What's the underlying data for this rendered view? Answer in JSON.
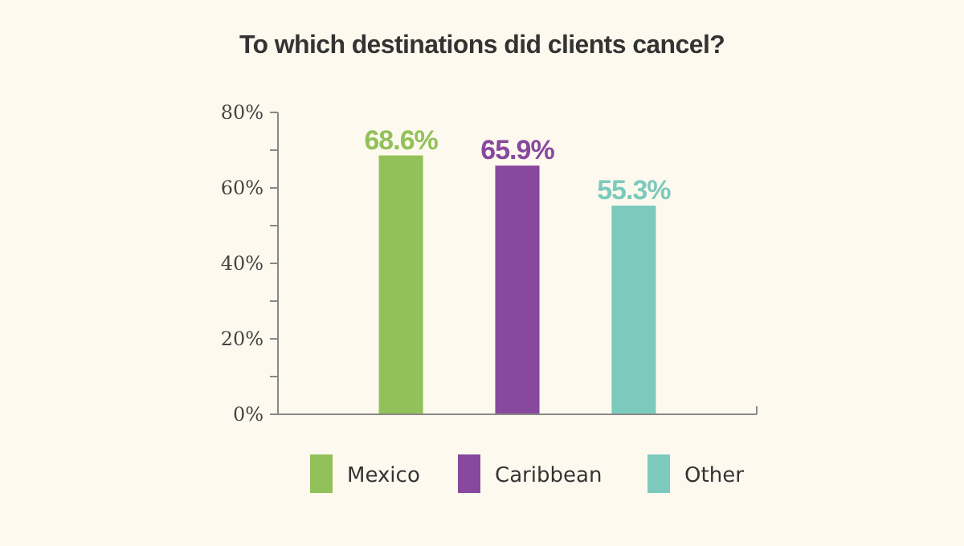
{
  "chart_data": {
    "type": "bar",
    "title": "To which destinations did clients cancel?",
    "categories": [
      null
    ],
    "series": [
      {
        "name": "Mexico",
        "color": "#92c15a",
        "values": [
          68.6
        ],
        "value_labels": [
          "68.6%"
        ]
      },
      {
        "name": "Caribbean",
        "color": "#87489e",
        "values": [
          65.9
        ],
        "value_labels": [
          "65.9%"
        ]
      },
      {
        "name": "Other",
        "color": "#7ccabd",
        "values": [
          55.3
        ],
        "value_labels": [
          "55.3%"
        ]
      }
    ],
    "ylim": [
      0,
      80
    ],
    "yticks": [
      {
        "value": 0,
        "label": "0%"
      },
      {
        "value": 10,
        "label": null
      },
      {
        "value": 20,
        "label": "20%"
      },
      {
        "value": 30,
        "label": null
      },
      {
        "value": 40,
        "label": "40%"
      },
      {
        "value": 50,
        "label": null
      },
      {
        "value": 60,
        "label": "60%"
      },
      {
        "value": 70,
        "label": null
      },
      {
        "value": 80,
        "label": "80%"
      }
    ],
    "tick_labels": "y",
    "legend": "bottom",
    "grid": false
  }
}
